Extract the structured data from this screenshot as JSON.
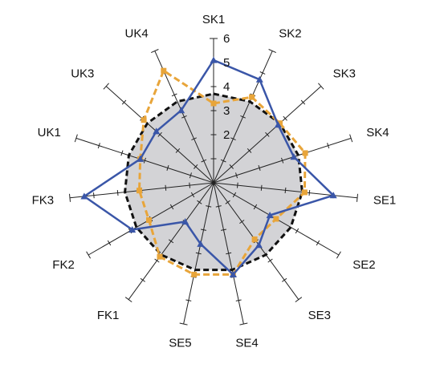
{
  "chart_data": {
    "type": "radar",
    "title": "",
    "axes": [
      "SK1",
      "SK2",
      "SK3",
      "SK4",
      "SE1",
      "SE2",
      "SE3",
      "SE4",
      "SE5",
      "FK1",
      "FK2",
      "FK3",
      "UK1",
      "UK3",
      "UK4"
    ],
    "rmax": 6,
    "radial_ticks": [
      2,
      3,
      4,
      5,
      6
    ],
    "radial_tick_labels": [
      "2",
      "3",
      "4",
      "5",
      "6"
    ],
    "minor_ticks_per_unit": 1,
    "grid": false,
    "series": [
      {
        "style": "reference-circle",
        "color": "#111111",
        "fill": "#d3d3d6",
        "values": [
          3.7,
          3.7,
          3.7,
          3.7,
          3.7,
          3.7,
          3.7,
          3.7,
          3.7,
          3.7,
          3.7,
          3.7,
          3.7,
          3.7,
          3.7
        ]
      },
      {
        "style": "blue-triangles",
        "color": "#3a56a8",
        "marker": "triangle",
        "values": [
          5.1,
          4.7,
          3.6,
          3.5,
          5.0,
          2.7,
          3.2,
          3.9,
          2.6,
          2.0,
          3.9,
          5.4,
          3.2,
          3.2,
          3.3
        ]
      },
      {
        "style": "orange-squares",
        "color": "#e8a53a",
        "marker": "square",
        "values": [
          3.3,
          3.9,
          3.7,
          4.0,
          3.8,
          3.0,
          2.9,
          3.9,
          3.9,
          3.8,
          3.1,
          3.1,
          3.2,
          3.9,
          5.1
        ]
      }
    ]
  }
}
